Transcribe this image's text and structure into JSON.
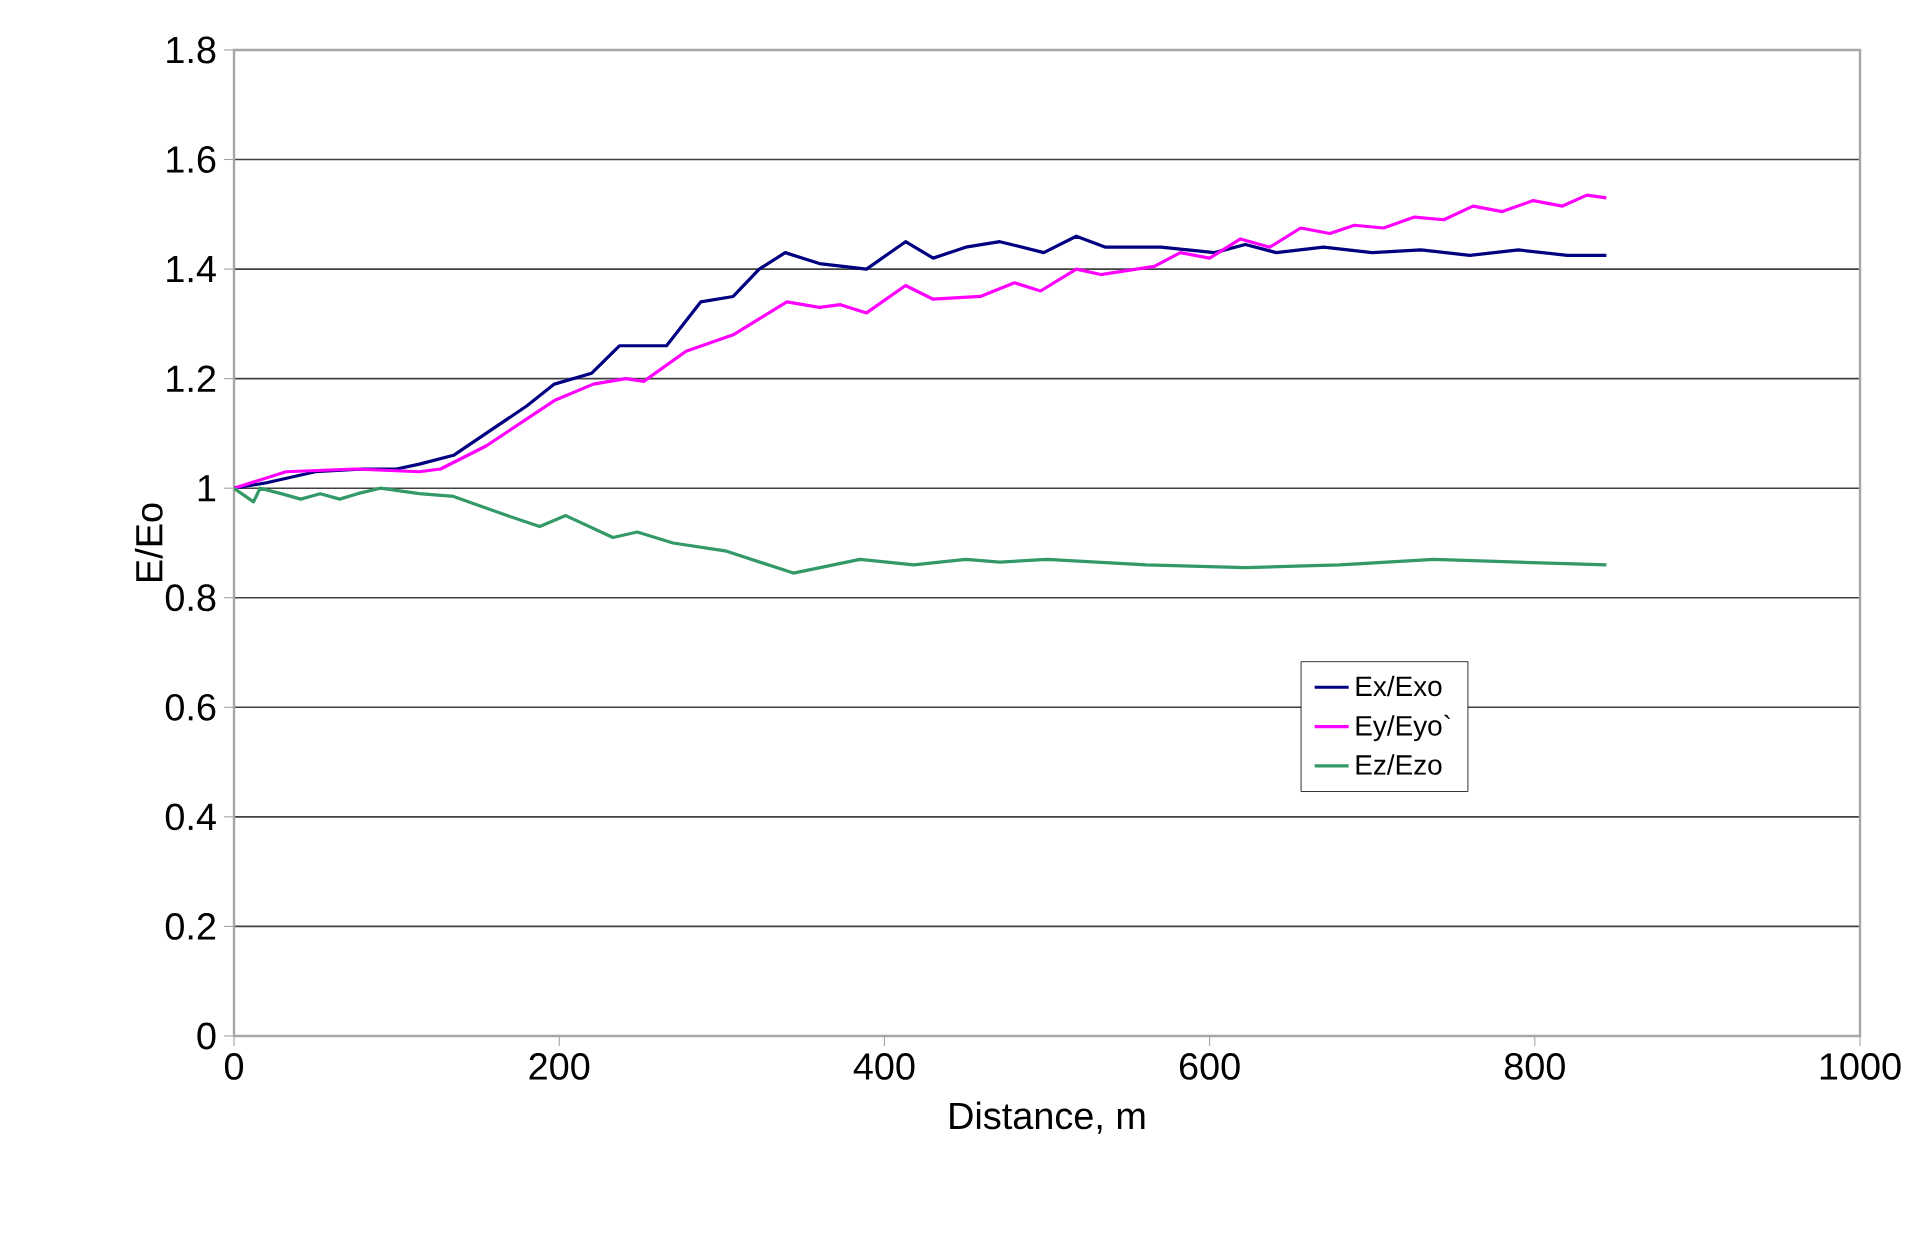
{
  "chart_data": {
    "type": "line",
    "xlabel": "Distance, m",
    "ylabel": "E/Eo",
    "xlim": [
      0,
      1000
    ],
    "xticks": [
      0,
      200,
      400,
      600,
      800,
      1000
    ],
    "ylim": [
      0,
      1.8
    ],
    "yticks": [
      0,
      0.2,
      0.4,
      0.6,
      0.8,
      1,
      1.2,
      1.4,
      1.6,
      1.8
    ],
    "grid": "y",
    "legend": "right",
    "marker": "none",
    "line_style": "solid",
    "series": [
      {
        "name": "Ex/Exo",
        "color": "#000080",
        "x": [
          0,
          20,
          50,
          80,
          100,
          114,
          135,
          155,
          180,
          197,
          220,
          237,
          266,
          287,
          307,
          323,
          339,
          360,
          389,
          413,
          430,
          450,
          471,
          498,
          518,
          536,
          570,
          603,
          622,
          641,
          670,
          700,
          730,
          760,
          790,
          820,
          844
        ],
        "values": [
          1.0,
          1.01,
          1.03,
          1.035,
          1.035,
          1.044,
          1.06,
          1.1,
          1.15,
          1.19,
          1.21,
          1.26,
          1.26,
          1.34,
          1.35,
          1.4,
          1.43,
          1.41,
          1.4,
          1.45,
          1.42,
          1.44,
          1.45,
          1.43,
          1.46,
          1.44,
          1.44,
          1.43,
          1.445,
          1.43,
          1.44,
          1.43,
          1.435,
          1.425,
          1.435,
          1.425,
          1.425
        ]
      },
      {
        "name": "Ey/Eyo`",
        "color": "#ff00ff",
        "x": [
          0,
          32,
          74,
          114,
          127,
          155,
          197,
          221,
          241,
          252,
          278,
          307,
          340,
          360,
          373,
          389,
          413,
          430,
          459,
          480,
          496,
          518,
          533,
          566,
          582,
          600,
          619,
          637,
          656,
          674,
          689,
          707,
          726,
          744,
          762,
          780,
          799,
          817,
          832,
          844
        ],
        "values": [
          1.0,
          1.03,
          1.035,
          1.03,
          1.035,
          1.077,
          1.16,
          1.19,
          1.2,
          1.195,
          1.25,
          1.28,
          1.34,
          1.33,
          1.335,
          1.32,
          1.37,
          1.345,
          1.35,
          1.375,
          1.36,
          1.4,
          1.39,
          1.405,
          1.43,
          1.42,
          1.455,
          1.44,
          1.475,
          1.465,
          1.48,
          1.475,
          1.495,
          1.49,
          1.515,
          1.505,
          1.525,
          1.515,
          1.535,
          1.53
        ]
      },
      {
        "name": "Ez/Ezo",
        "color": "#339966",
        "x": [
          0,
          12,
          16,
          29,
          41,
          53,
          65,
          76,
          90,
          114,
          135,
          168,
          188,
          204,
          233,
          248,
          270,
          303,
          344,
          385,
          418,
          450,
          471,
          500,
          561,
          622,
          680,
          738,
          790,
          844
        ],
        "values": [
          1.0,
          0.975,
          1.0,
          0.99,
          0.98,
          0.99,
          0.98,
          0.99,
          1.0,
          0.99,
          0.985,
          0.95,
          0.93,
          0.95,
          0.91,
          0.92,
          0.9,
          0.885,
          0.845,
          0.87,
          0.86,
          0.87,
          0.865,
          0.87,
          0.86,
          0.855,
          0.86,
          0.87,
          0.865,
          0.86
        ]
      }
    ]
  }
}
